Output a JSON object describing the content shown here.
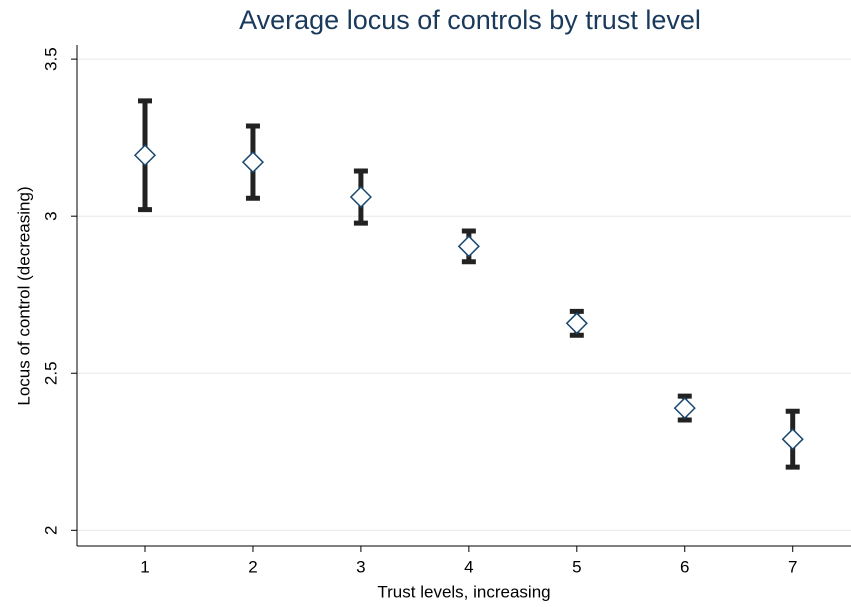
{
  "chart_data": {
    "type": "errorbar",
    "title": "Average locus of controls by trust level",
    "x_label": "Trust levels, increasing",
    "y_label": "Locus of control (decreasing)",
    "x": [
      1,
      2,
      3,
      4,
      5,
      6,
      7
    ],
    "values": [
      3.194,
      3.172,
      3.061,
      2.904,
      2.659,
      2.389,
      2.29
    ],
    "errors": [
      0.173,
      0.115,
      0.083,
      0.049,
      0.038,
      0.038,
      0.089
    ],
    "marker_color": "#1a476f",
    "bar_color": "#222222",
    "xlim": [
      0.37,
      7.54
    ],
    "xticks": [
      1,
      2,
      3,
      4,
      5,
      6,
      7
    ],
    "ylim": [
      1.95,
      3.545
    ],
    "yticks": [
      2,
      2.5,
      3,
      3.5
    ],
    "grid": true
  }
}
